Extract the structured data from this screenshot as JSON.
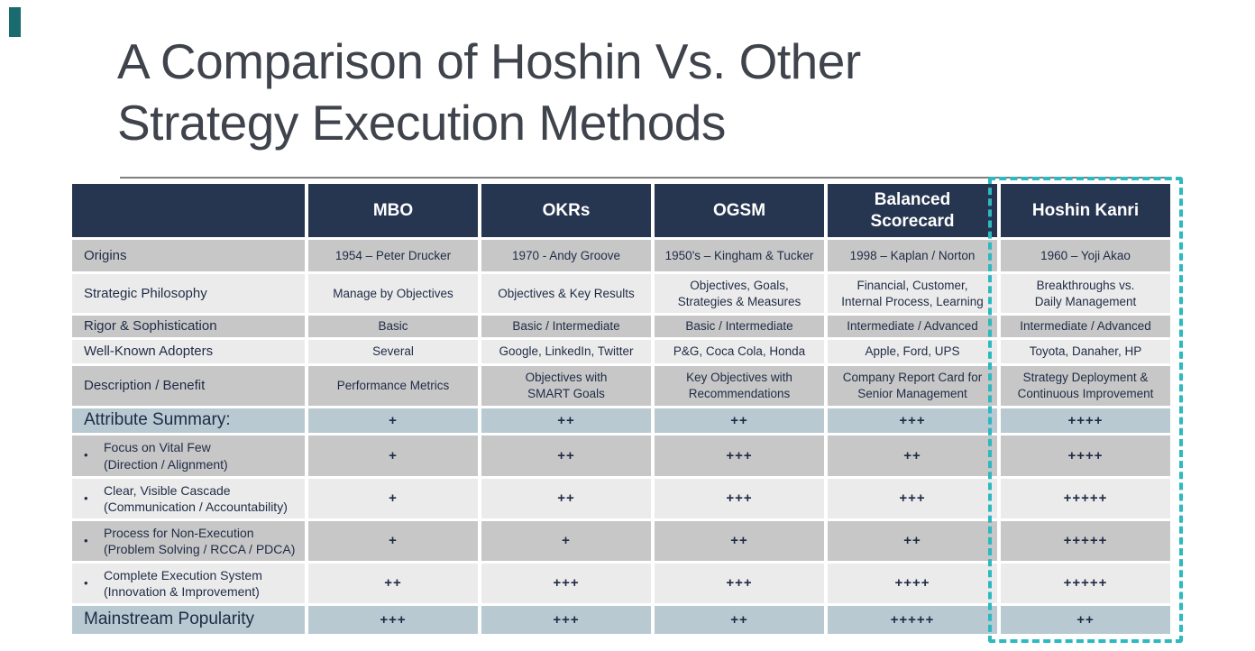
{
  "colors": {
    "header_navy": "#263550",
    "row_dark_gray": "#C7C7C7",
    "row_light_gray": "#EBEBEB",
    "row_blue_gray": "#B9C9D2",
    "teal_accent": "#2CB9BF",
    "text_navy": "#1F2B45",
    "title_gray": "#3F434B"
  },
  "title": {
    "line1": "A Comparison of Hoshin Vs. Other",
    "line2": "Strategy Execution Methods"
  },
  "table": {
    "header": [
      "",
      "MBO",
      "OKRs",
      "OGSM",
      "Balanced\nScorecard",
      "Hoshin Kanri"
    ],
    "rows": [
      {
        "label": "Origins",
        "tone": "dark",
        "cells": [
          "1954 – Peter Drucker",
          "1970 - Andy Groove",
          "1950's – Kingham & Tucker",
          "1998 – Kaplan / Norton",
          "1960 – Yoji Akao"
        ]
      },
      {
        "label": "Strategic Philosophy",
        "tone": "light",
        "cells": [
          "Manage by Objectives",
          "Objectives & Key Results",
          "Objectives, Goals,\nStrategies & Measures",
          "Financial, Customer,\nInternal Process, Learning",
          "Breakthroughs vs.\nDaily Management"
        ]
      },
      {
        "label": "Rigor & Sophistication",
        "tone": "dark",
        "cells": [
          "Basic",
          "Basic / Intermediate",
          "Basic / Intermediate",
          "Intermediate / Advanced",
          "Intermediate / Advanced"
        ]
      },
      {
        "label": "Well-Known Adopters",
        "tone": "light",
        "cells": [
          "Several",
          "Google, LinkedIn, Twitter",
          "P&G, Coca Cola, Honda",
          "Apple, Ford, UPS",
          "Toyota, Danaher, HP"
        ]
      },
      {
        "label": "Description / Benefit",
        "tone": "dark",
        "cells": [
          "Performance Metrics",
          "Objectives with\nSMART Goals",
          "Key Objectives with\nRecommendations",
          "Company Report Card for\nSenior Management",
          "Strategy Deployment &\nContinuous Improvement"
        ]
      },
      {
        "label": "Attribute Summary:",
        "emphasis": true,
        "plus": true,
        "tone": "blue",
        "cells": [
          "+",
          "++",
          "++",
          "+++",
          "++++"
        ]
      },
      {
        "label": "Focus on Vital Few\n(Direction / Alignment)",
        "bullet": true,
        "plus": true,
        "tone": "dark",
        "cells": [
          "+",
          "++",
          "+++",
          "++",
          "++++"
        ]
      },
      {
        "label": "Clear, Visible Cascade\n(Communication / Accountability)",
        "bullet": true,
        "plus": true,
        "tone": "light",
        "cells": [
          "+",
          "++",
          "+++",
          "+++",
          "+++++"
        ]
      },
      {
        "label": "Process for Non-Execution\n(Problem Solving / RCCA / PDCA)",
        "bullet": true,
        "plus": true,
        "tone": "dark",
        "cells": [
          "+",
          "+",
          "++",
          "++",
          "+++++"
        ]
      },
      {
        "label": "Complete Execution System\n(Innovation & Improvement)",
        "bullet": true,
        "plus": true,
        "tone": "light",
        "cells": [
          "++",
          "+++",
          "+++",
          "++++",
          "+++++"
        ]
      },
      {
        "label": "Mainstream Popularity",
        "emphasis": true,
        "plus": true,
        "tone": "blue",
        "cells": [
          "+++",
          "+++",
          "++",
          "+++++",
          "++"
        ]
      }
    ]
  },
  "highlight": {
    "column": "Hoshin Kanri"
  }
}
